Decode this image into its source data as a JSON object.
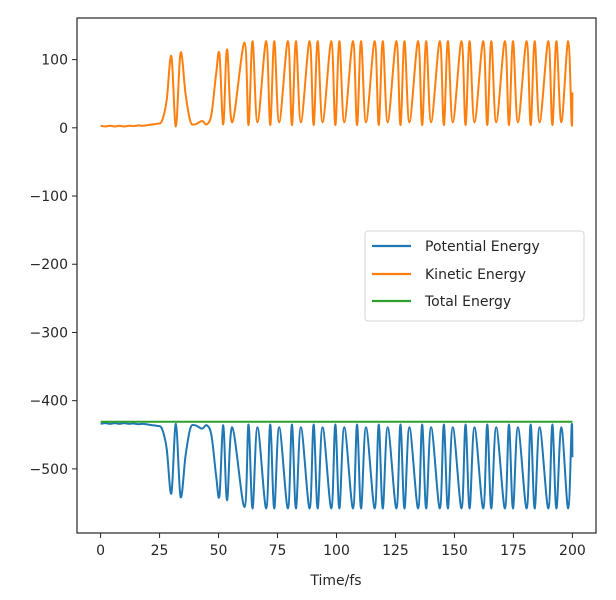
{
  "chart_data": {
    "type": "line",
    "title": "",
    "xlabel": "Time/fs",
    "ylabel": "",
    "xlim": [
      -10,
      210
    ],
    "ylim": [
      -594,
      161
    ],
    "xticks": [
      0,
      25,
      50,
      75,
      100,
      125,
      150,
      175,
      200
    ],
    "yticks": [
      100,
      0,
      -100,
      -200,
      -300,
      -400,
      -500
    ],
    "ytick_labels": [
      "100",
      "0",
      "−100",
      "−200",
      "−300",
      "−400",
      "−500"
    ],
    "xtick_labels": [
      "0",
      "25",
      "50",
      "75",
      "100",
      "125",
      "150",
      "175",
      "200"
    ],
    "grid": false,
    "legend_position": "center-right",
    "series": [
      {
        "name": "Potential Energy",
        "color": "#1f77b4",
        "points": [
          [
            0,
            -434
          ],
          [
            2,
            -433
          ],
          [
            4,
            -434
          ],
          [
            6,
            -433
          ],
          [
            8,
            -434
          ],
          [
            10,
            -433
          ],
          [
            12,
            -434
          ],
          [
            14,
            -433.5
          ],
          [
            16,
            -434.5
          ],
          [
            18,
            -434
          ],
          [
            20,
            -435
          ],
          [
            22,
            -436
          ],
          [
            24,
            -437
          ],
          [
            26,
            -441
          ],
          [
            28,
            -470
          ],
          [
            30,
            -536
          ],
          [
            31.9,
            -434
          ],
          [
            33.9,
            -541
          ],
          [
            36,
            -481
          ],
          [
            38,
            -441
          ],
          [
            40,
            -436
          ],
          [
            43,
            -441
          ],
          [
            45,
            -436
          ],
          [
            47,
            -451
          ],
          [
            49,
            -511
          ],
          [
            50.4,
            -539
          ],
          [
            52,
            -436
          ],
          [
            53.6,
            -546
          ],
          [
            55.8,
            -439
          ],
          [
            61,
            -556
          ],
          [
            62.7,
            -435
          ],
          [
            64.4,
            -558
          ],
          [
            66.5,
            -439
          ],
          [
            70.2,
            -558
          ],
          [
            71.9,
            -435
          ],
          [
            73.6,
            -558
          ],
          [
            75.7,
            -439
          ],
          [
            79.4,
            -558
          ],
          [
            81.1,
            -435
          ],
          [
            82.8,
            -558
          ],
          [
            84.9,
            -439
          ],
          [
            88.6,
            -558
          ],
          [
            90.3,
            -435
          ],
          [
            92,
            -558
          ],
          [
            94.1,
            -439
          ],
          [
            97.8,
            -558
          ],
          [
            99.5,
            -435
          ],
          [
            101.2,
            -558
          ],
          [
            103.3,
            -439
          ],
          [
            107,
            -558
          ],
          [
            108.7,
            -435
          ],
          [
            110.4,
            -558
          ],
          [
            112.5,
            -439
          ],
          [
            116.2,
            -558
          ],
          [
            117.9,
            -435
          ],
          [
            119.6,
            -558
          ],
          [
            121.7,
            -439
          ],
          [
            125.4,
            -558
          ],
          [
            127.1,
            -435
          ],
          [
            128.8,
            -558
          ],
          [
            130.9,
            -439
          ],
          [
            134.6,
            -558
          ],
          [
            136.3,
            -435
          ],
          [
            138,
            -558
          ],
          [
            140.1,
            -439
          ],
          [
            143.8,
            -558
          ],
          [
            145.5,
            -435
          ],
          [
            147.2,
            -558
          ],
          [
            149.3,
            -439
          ],
          [
            153,
            -558
          ],
          [
            154.7,
            -435
          ],
          [
            156.4,
            -558
          ],
          [
            158.5,
            -439
          ],
          [
            162.2,
            -558
          ],
          [
            163.9,
            -435
          ],
          [
            165.6,
            -558
          ],
          [
            167.7,
            -439
          ],
          [
            171.4,
            -558
          ],
          [
            173.1,
            -435
          ],
          [
            174.8,
            -558
          ],
          [
            176.9,
            -439
          ],
          [
            180.6,
            -558
          ],
          [
            182.3,
            -435
          ],
          [
            184,
            -558
          ],
          [
            186.1,
            -439
          ],
          [
            189.8,
            -558
          ],
          [
            191.5,
            -435
          ],
          [
            193.2,
            -558
          ],
          [
            195.3,
            -439
          ],
          [
            198.2,
            -558
          ],
          [
            199.7,
            -436
          ],
          [
            200,
            -483
          ]
        ]
      },
      {
        "name": "Kinetic Energy",
        "color": "#ff7f0e",
        "points": [
          [
            0,
            3
          ],
          [
            2,
            2
          ],
          [
            4,
            3
          ],
          [
            6,
            2
          ],
          [
            8,
            3
          ],
          [
            10,
            2
          ],
          [
            12,
            3
          ],
          [
            14,
            2.5
          ],
          [
            16,
            3.5
          ],
          [
            18,
            3
          ],
          [
            20,
            4
          ],
          [
            22,
            5
          ],
          [
            24,
            6
          ],
          [
            26,
            10
          ],
          [
            28,
            40
          ],
          [
            30,
            105
          ],
          [
            31.9,
            2
          ],
          [
            33.9,
            110
          ],
          [
            36,
            50
          ],
          [
            38,
            10
          ],
          [
            40,
            5
          ],
          [
            43,
            10
          ],
          [
            45,
            5
          ],
          [
            47,
            20
          ],
          [
            49,
            80
          ],
          [
            50.4,
            108
          ],
          [
            52,
            5
          ],
          [
            53.6,
            115
          ],
          [
            55.8,
            8
          ],
          [
            61,
            125
          ],
          [
            62.7,
            4
          ],
          [
            64.4,
            127
          ],
          [
            66.5,
            8
          ],
          [
            70.2,
            127
          ],
          [
            71.9,
            4
          ],
          [
            73.6,
            127
          ],
          [
            75.7,
            8
          ],
          [
            79.4,
            127
          ],
          [
            81.1,
            4
          ],
          [
            82.8,
            127
          ],
          [
            84.9,
            8
          ],
          [
            88.6,
            127
          ],
          [
            90.3,
            4
          ],
          [
            92,
            127
          ],
          [
            94.1,
            8
          ],
          [
            97.8,
            127
          ],
          [
            99.5,
            4
          ],
          [
            101.2,
            127
          ],
          [
            103.3,
            8
          ],
          [
            107,
            127
          ],
          [
            108.7,
            4
          ],
          [
            110.4,
            127
          ],
          [
            112.5,
            8
          ],
          [
            116.2,
            127
          ],
          [
            117.9,
            4
          ],
          [
            119.6,
            127
          ],
          [
            121.7,
            8
          ],
          [
            125.4,
            127
          ],
          [
            127.1,
            4
          ],
          [
            128.8,
            127
          ],
          [
            130.9,
            8
          ],
          [
            134.6,
            127
          ],
          [
            136.3,
            4
          ],
          [
            138,
            127
          ],
          [
            140.1,
            8
          ],
          [
            143.8,
            127
          ],
          [
            145.5,
            4
          ],
          [
            147.2,
            127
          ],
          [
            149.3,
            8
          ],
          [
            153,
            127
          ],
          [
            154.7,
            4
          ],
          [
            156.4,
            127
          ],
          [
            158.5,
            8
          ],
          [
            162.2,
            127
          ],
          [
            163.9,
            4
          ],
          [
            165.6,
            127
          ],
          [
            167.7,
            8
          ],
          [
            171.4,
            127
          ],
          [
            173.1,
            4
          ],
          [
            174.8,
            127
          ],
          [
            176.9,
            8
          ],
          [
            180.6,
            127
          ],
          [
            182.3,
            4
          ],
          [
            184,
            127
          ],
          [
            186.1,
            8
          ],
          [
            189.8,
            127
          ],
          [
            191.5,
            4
          ],
          [
            193.2,
            127
          ],
          [
            195.3,
            8
          ],
          [
            198.2,
            127
          ],
          [
            199.7,
            5
          ],
          [
            200,
            52
          ]
        ]
      },
      {
        "name": "Total Energy",
        "color": "#2ca02c",
        "points": [
          [
            0,
            -431
          ],
          [
            50,
            -431
          ],
          [
            100,
            -431
          ],
          [
            150,
            -431
          ],
          [
            200,
            -431
          ]
        ]
      }
    ]
  }
}
